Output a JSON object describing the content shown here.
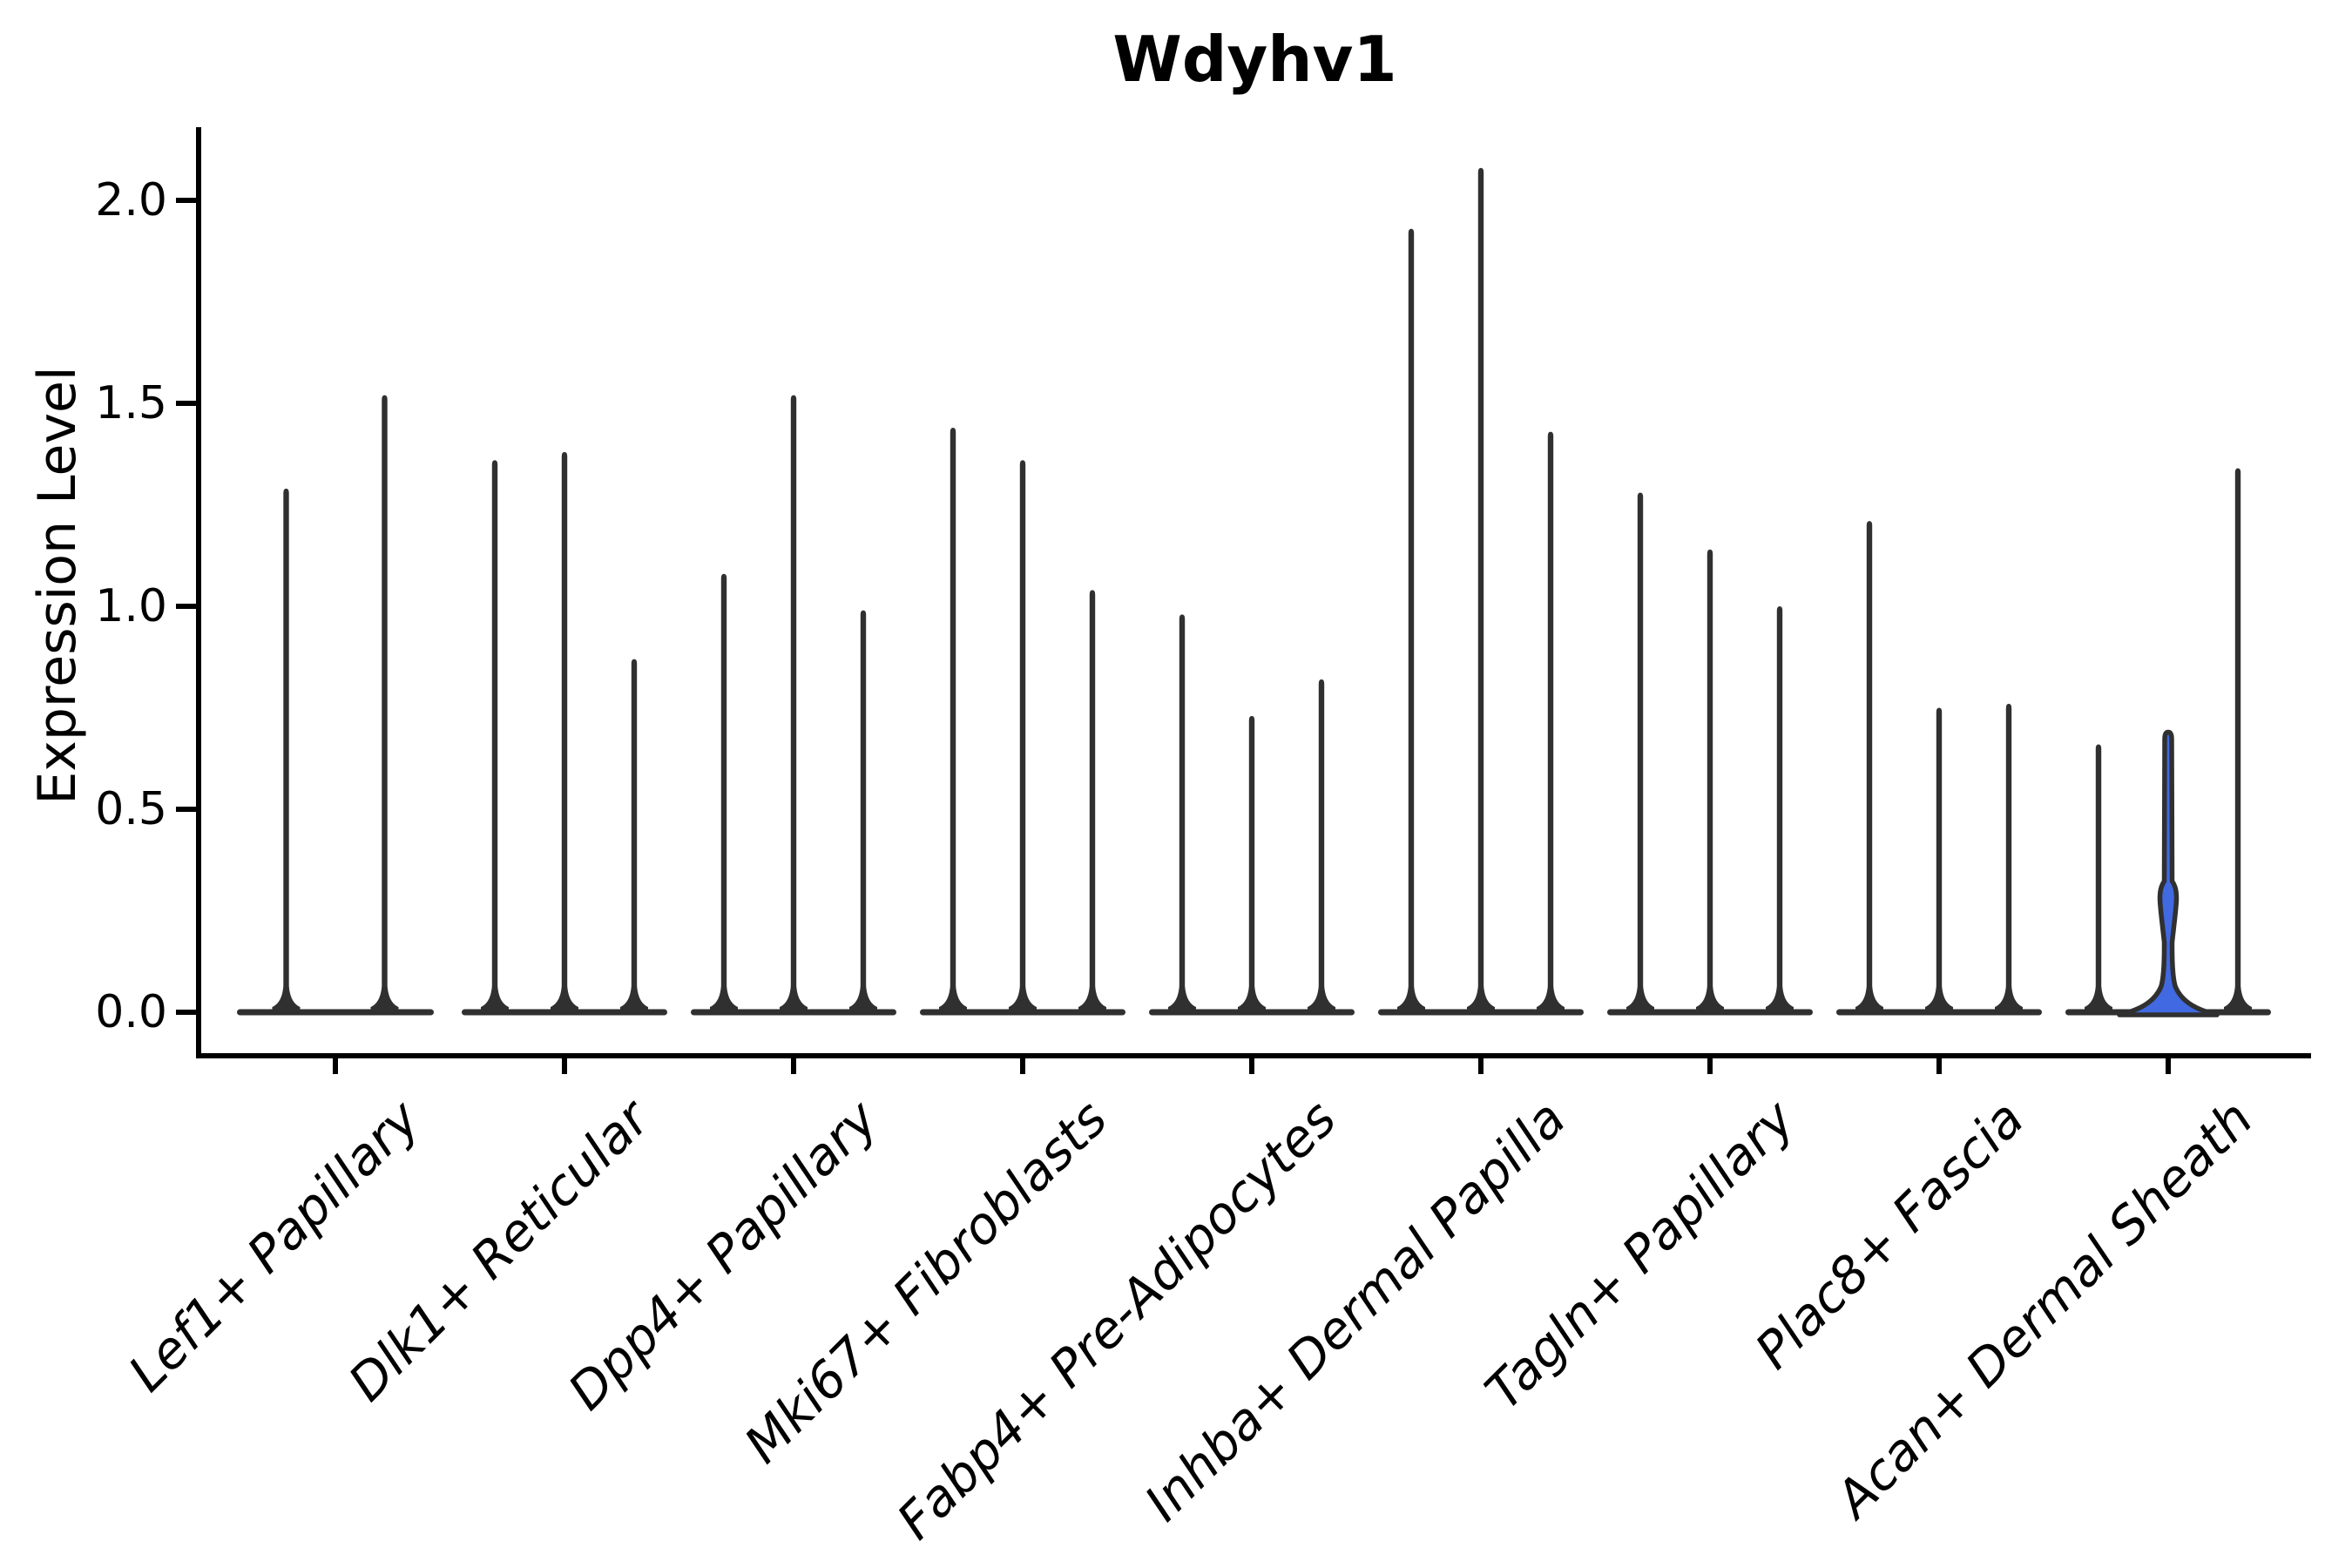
{
  "title": "Wdyhv1",
  "ylabel": "Expression Level",
  "chart_data": {
    "type": "violin",
    "title": "Wdyhv1",
    "xlabel": "",
    "ylabel": "Expression Level",
    "yticks": [
      0.0,
      0.5,
      1.0,
      1.5,
      2.0
    ],
    "ylim": [
      0.0,
      2.19
    ],
    "grid": false,
    "legend": "none",
    "line_color": "#303030",
    "axis_color": "#000000",
    "highlight_fill": "#4169E1",
    "categories": [
      "Lef1+ Papillary",
      "Dlk1+ Reticular",
      "Dpp4+ Papillary",
      "Mki67+ Fibroblasts",
      "Fabp4+ Pre-Adipocytes",
      "Inhba+ Dermal Papilla",
      "Tagln+ Papillary",
      "Plac8+ Fascia",
      "Acan+ Dermal Sheath"
    ],
    "groups": [
      {
        "category": "Lef1+ Papillary",
        "violins": [
          {
            "max": 1.29,
            "filled": false
          },
          {
            "max": 1.52,
            "filled": false
          }
        ]
      },
      {
        "category": "Dlk1+ Reticular",
        "violins": [
          {
            "max": 1.36,
            "filled": false
          },
          {
            "max": 1.38,
            "filled": false
          },
          {
            "max": 0.87,
            "filled": false
          }
        ]
      },
      {
        "category": "Dpp4+ Papillary",
        "violins": [
          {
            "max": 1.08,
            "filled": false
          },
          {
            "max": 1.52,
            "filled": false
          },
          {
            "max": 0.99,
            "filled": false
          }
        ]
      },
      {
        "category": "Mki67+ Fibroblasts",
        "violins": [
          {
            "max": 1.44,
            "filled": false
          },
          {
            "max": 1.36,
            "filled": false
          },
          {
            "max": 1.04,
            "filled": false
          }
        ]
      },
      {
        "category": "Fabp4+ Pre-Adipocytes",
        "violins": [
          {
            "max": 0.98,
            "filled": false
          },
          {
            "max": 0.73,
            "filled": false
          },
          {
            "max": 0.82,
            "filled": false
          }
        ]
      },
      {
        "category": "Inhba+ Dermal Papilla",
        "violins": [
          {
            "max": 1.93,
            "filled": false
          },
          {
            "max": 2.08,
            "filled": false
          },
          {
            "max": 1.43,
            "filled": false
          }
        ]
      },
      {
        "category": "Tagln+ Papillary",
        "violins": [
          {
            "max": 1.28,
            "filled": false
          },
          {
            "max": 1.14,
            "filled": false
          },
          {
            "max": 1.0,
            "filled": false
          }
        ]
      },
      {
        "category": "Plac8+ Fascia",
        "violins": [
          {
            "max": 1.21,
            "filled": false
          },
          {
            "max": 0.75,
            "filled": false
          },
          {
            "max": 0.76,
            "filled": false
          }
        ]
      },
      {
        "category": "Acan+ Dermal Sheath",
        "violins": [
          {
            "max": 0.66,
            "filled": false
          },
          {
            "max": 0.69,
            "filled": true,
            "bulge_center": 0.28
          },
          {
            "max": 1.34,
            "filled": false
          }
        ]
      }
    ]
  }
}
